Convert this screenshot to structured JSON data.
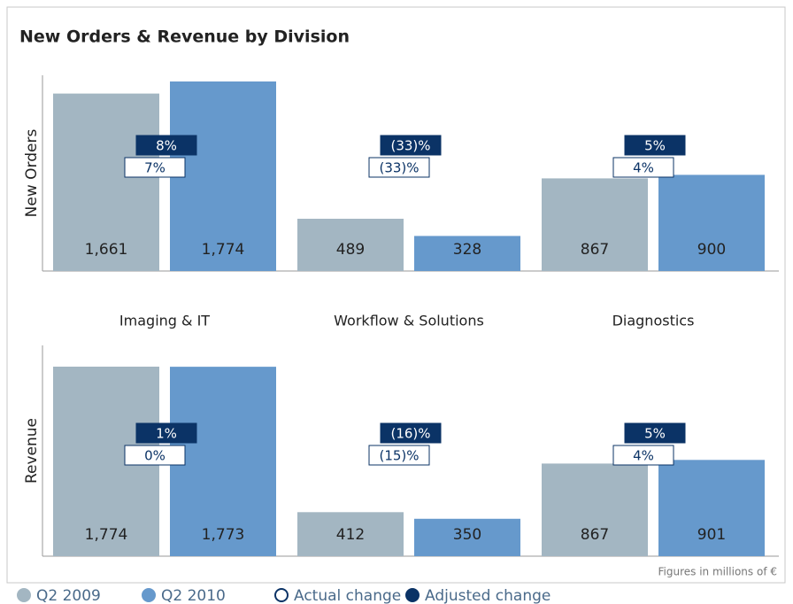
{
  "title": "New Orders & Revenue by Division",
  "note": "Figures in millions of €",
  "chart_data": [
    {
      "type": "bar",
      "y_label": "New Orders",
      "categories": [
        "Imaging & IT",
        "Workflow & Solutions",
        "Diagnostics"
      ],
      "series": [
        {
          "name": "Q2 2009",
          "color": "#a3b6c2",
          "values": [
            1661,
            489,
            867
          ],
          "value_labels": [
            "1,661",
            "489",
            "867"
          ]
        },
        {
          "name": "Q2 2010",
          "color": "#6699cc",
          "values": [
            1774,
            328,
            900
          ],
          "value_labels": [
            "1,774",
            "328",
            "900"
          ]
        }
      ],
      "changes": [
        {
          "name": "Actual change",
          "color": "#ffffff",
          "values": [
            7,
            -33,
            4
          ],
          "value_labels": [
            "7%",
            "(33)%",
            "4%"
          ]
        },
        {
          "name": "Adjusted change",
          "color": "#0b3366",
          "values": [
            8,
            -33,
            5
          ],
          "value_labels": [
            "8%",
            "(33)%",
            "5%"
          ]
        }
      ]
    },
    {
      "type": "bar",
      "y_label": "Revenue",
      "series": [
        {
          "color": "#a3b6c2",
          "values": [
            1774,
            412,
            867
          ],
          "value_labels": [
            "1,774",
            "412",
            "867"
          ]
        },
        {
          "color": "#6699cc",
          "values": [
            1773,
            350,
            901
          ],
          "value_labels": [
            "1,773",
            "350",
            "901"
          ]
        }
      ],
      "changes": [
        {
          "color": "#ffffff",
          "values": [
            0,
            -15,
            4
          ],
          "value_labels": [
            "0%",
            "(15)%",
            "4%"
          ]
        },
        {
          "color": "#0b3366",
          "values": [
            1,
            -16,
            5
          ],
          "value_labels": [
            "1%",
            "(16)%",
            "5%"
          ]
        }
      ]
    }
  ]
}
